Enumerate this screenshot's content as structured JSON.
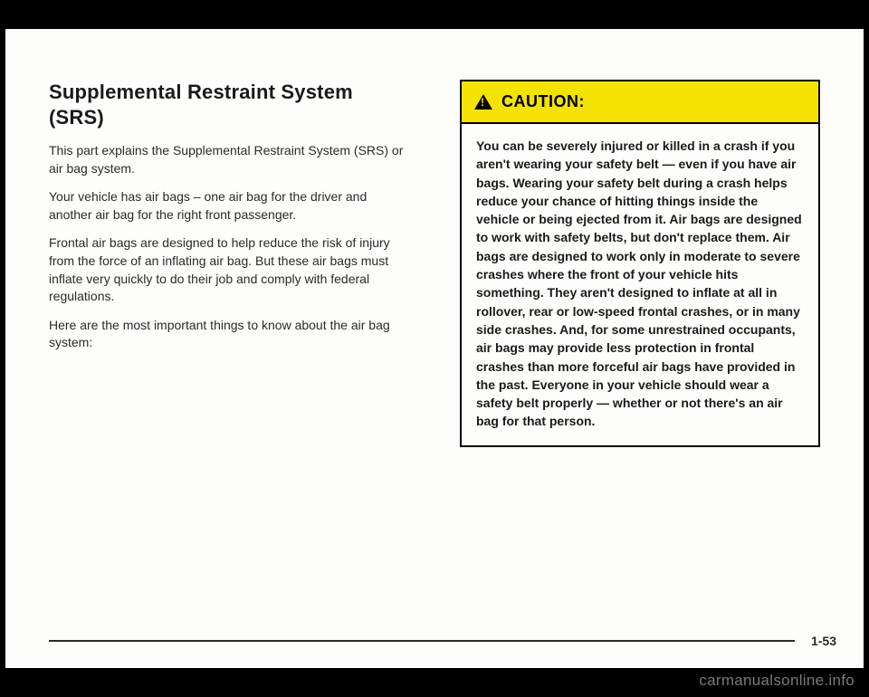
{
  "left": {
    "heading": "Supplemental Restraint System (SRS)",
    "p1": "This part explains the Supplemental Restraint System (SRS) or air bag system.",
    "p2": "Your vehicle has air bags – one air bag for the driver and another air bag for the right front passenger.",
    "p3": "Frontal air bags are designed to help reduce the risk of injury from the force of an inflating air bag. But these air bags must inflate very quickly to do their job and comply with federal regulations.",
    "p4": "Here are the most important things to know about the air bag system:"
  },
  "caution": {
    "title": "CAUTION:",
    "body": "You can be severely injured or killed in a crash if you aren't wearing your safety belt — even if you have air bags. Wearing your safety belt during a crash helps reduce your chance of hitting things inside the vehicle or being ejected from it. Air bags are designed to work with safety belts, but don't replace them. Air bags are designed to work only in moderate to severe crashes where the front of your vehicle hits something. They aren't designed to inflate at all in rollover, rear or low-speed frontal crashes, or in many side crashes. And, for some unrestrained occupants, air bags may provide less protection in frontal crashes than more forceful air bags have provided in the past. Everyone in your vehicle should wear a safety belt properly — whether or not there's an air bag for that person."
  },
  "page_number": "1-53",
  "watermark": "carmanualsonline.info"
}
